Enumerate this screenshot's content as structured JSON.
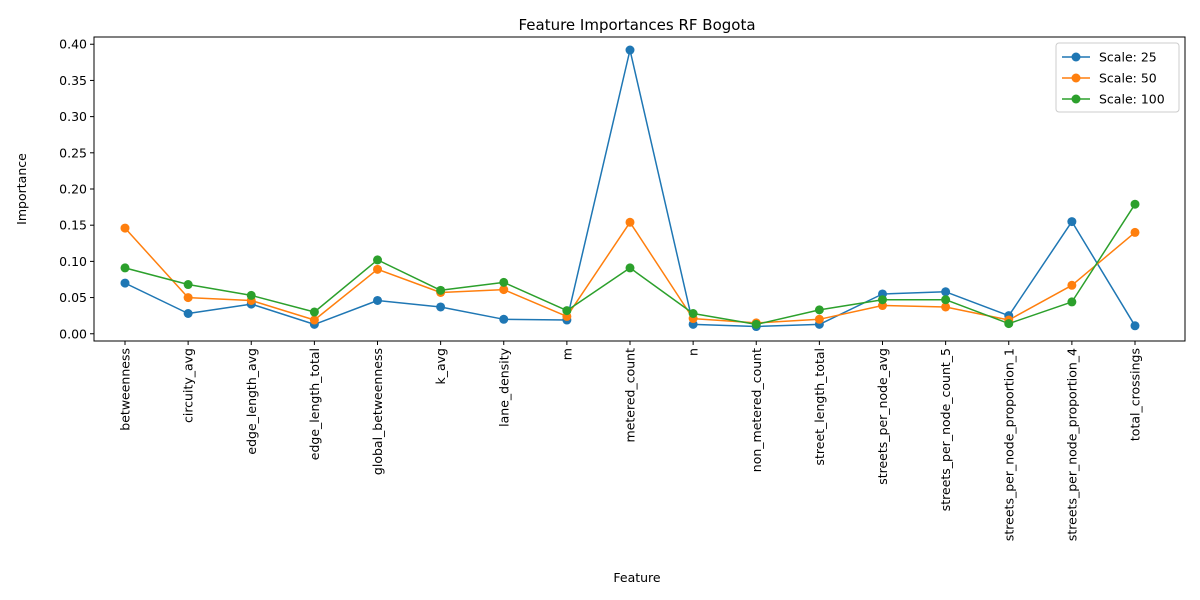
{
  "chart_data": {
    "type": "line",
    "title": "Feature Importances RF Bogota",
    "xlabel": "Feature",
    "ylabel": "Importance",
    "ylim": [
      -0.01,
      0.41
    ],
    "yticks": [
      "0.00",
      "0.05",
      "0.10",
      "0.15",
      "0.20",
      "0.25",
      "0.30",
      "0.35",
      "0.40"
    ],
    "grid": false,
    "legend_position": "top-right",
    "categories": [
      "betweenness",
      "circuity_avg",
      "edge_length_avg",
      "edge_length_total",
      "global_betweenness",
      "k_avg",
      "lane_density",
      "m",
      "metered_count",
      "n",
      "non_metered_count",
      "street_length_total",
      "streets_per_node_avg",
      "streets_per_node_count_5",
      "streets_per_node_proportion_1",
      "streets_per_node_proportion_4",
      "total_crossings"
    ],
    "series": [
      {
        "name": "Scale: 25",
        "color": "#1f77b4",
        "values": [
          0.07,
          0.028,
          0.041,
          0.013,
          0.046,
          0.037,
          0.02,
          0.019,
          0.392,
          0.013,
          0.01,
          0.013,
          0.055,
          0.058,
          0.025,
          0.155,
          0.011
        ]
      },
      {
        "name": "Scale: 50",
        "color": "#ff7f0e",
        "values": [
          0.146,
          0.05,
          0.046,
          0.019,
          0.089,
          0.057,
          0.061,
          0.024,
          0.154,
          0.021,
          0.015,
          0.02,
          0.039,
          0.037,
          0.019,
          0.067,
          0.14
        ]
      },
      {
        "name": "Scale: 100",
        "color": "#2ca02c",
        "values": [
          0.091,
          0.068,
          0.053,
          0.03,
          0.102,
          0.06,
          0.071,
          0.032,
          0.091,
          0.028,
          0.013,
          0.033,
          0.047,
          0.047,
          0.014,
          0.044,
          0.179
        ]
      }
    ]
  }
}
